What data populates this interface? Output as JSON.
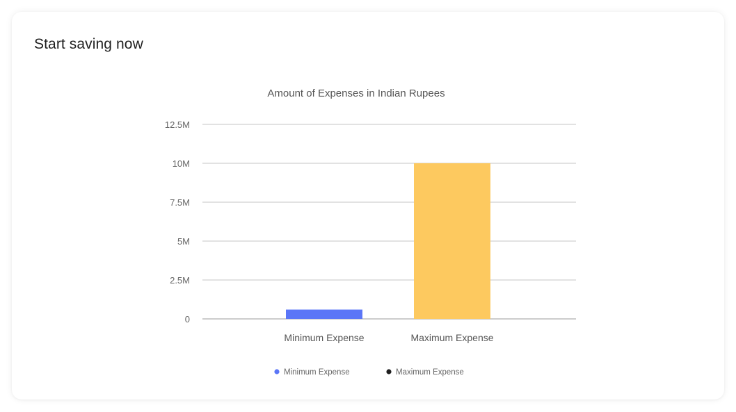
{
  "card": {
    "title": "Start saving now"
  },
  "chart_data": {
    "type": "bar",
    "title": "Amount of Expenses in Indian Rupees",
    "xlabel": "",
    "ylabel": "",
    "categories": [
      "Minimum Expense",
      "Maximum Expense"
    ],
    "values": [
      600000,
      10000000
    ],
    "bar_colors": [
      "#5b76f7",
      "#fdc95f"
    ],
    "ylim": [
      0,
      12500000
    ],
    "y_ticks": [
      {
        "value": 0,
        "label": "0"
      },
      {
        "value": 2500000,
        "label": "2.5M"
      },
      {
        "value": 5000000,
        "label": "5M"
      },
      {
        "value": 7500000,
        "label": "7.5M"
      },
      {
        "value": 10000000,
        "label": "10M"
      },
      {
        "value": 12500000,
        "label": "12.5M"
      }
    ],
    "grid": true,
    "legend": {
      "placement": "bottom",
      "entries": [
        {
          "label": "Minimum Expense",
          "color": "#5b76f7"
        },
        {
          "label": "Maximum Expense",
          "color": "#1f1f1f"
        }
      ]
    }
  }
}
